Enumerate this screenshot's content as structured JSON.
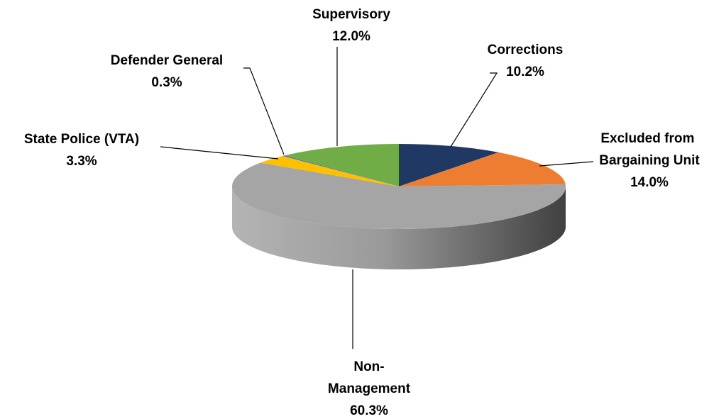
{
  "chart_data": {
    "type": "pie3d",
    "categories": [
      "Corrections",
      "Excluded from Bargaining Unit",
      "Non-Management",
      "State Police (VTA)",
      "Defender General",
      "Supervisory"
    ],
    "values": [
      10.2,
      14.0,
      60.3,
      3.3,
      0.3,
      12.0
    ],
    "value_labels": [
      "10.2%",
      "14.0%",
      "60.3%",
      "3.3%",
      "0.3%",
      "12.0%"
    ],
    "colors": [
      "#203864",
      "#ed7d31",
      "#a5a5a5",
      "#ffc000",
      "#4472c4",
      "#70ad47"
    ]
  }
}
